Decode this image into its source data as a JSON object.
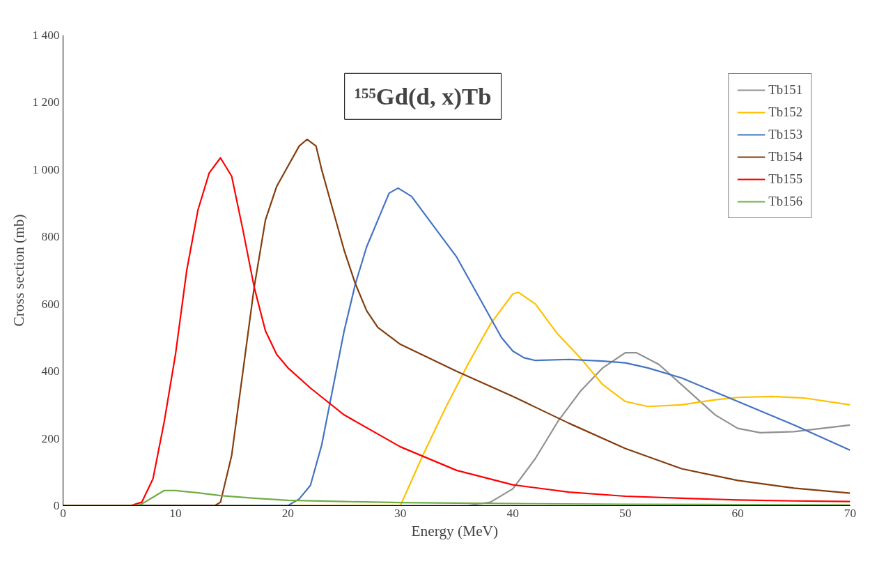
{
  "chart_data": {
    "type": "line",
    "title": "¹⁵⁵Gd(d, x)Tb",
    "xlabel": "Energy  (MeV)",
    "ylabel": "Cross section (mb)",
    "xlim": [
      0,
      70
    ],
    "xticks": [
      0,
      10,
      20,
      30,
      40,
      50,
      60,
      70
    ],
    "ylim": [
      0,
      1400
    ],
    "yticks": [
      0,
      200,
      400,
      600,
      800,
      {
        "value": 1000,
        "label": "1 000"
      },
      {
        "value": 1200,
        "label": "1 200"
      },
      {
        "value": 1400,
        "label": "1 400"
      }
    ],
    "grid": false,
    "legend": "top right",
    "marker": "none",
    "line_style": "solid",
    "series": [
      {
        "name": "Tb151",
        "color": "#909090",
        "x": [
          0,
          36,
          38,
          40,
          42,
          44,
          46,
          48,
          50,
          51,
          53,
          55,
          58,
          60,
          62,
          65,
          70
        ],
        "values": [
          0,
          0,
          10,
          50,
          140,
          250,
          340,
          410,
          455,
          455,
          420,
          360,
          270,
          230,
          217,
          220,
          240
        ]
      },
      {
        "name": "Tb152",
        "color": "#ffc000",
        "x": [
          0,
          30,
          32,
          34,
          36,
          38,
          40,
          40.5,
          42,
          44,
          46,
          48,
          50,
          52,
          55,
          58,
          60,
          63,
          66,
          70
        ],
        "values": [
          0,
          0,
          150,
          290,
          420,
          540,
          630,
          635,
          600,
          510,
          440,
          360,
          310,
          295,
          300,
          315,
          322,
          325,
          320,
          300
        ]
      },
      {
        "name": "Tb153",
        "color": "#4472c4",
        "x": [
          0,
          20,
          21,
          22,
          23,
          24,
          25,
          26,
          27,
          28,
          29,
          29.8,
          31,
          33,
          35,
          37,
          39,
          40,
          41,
          42,
          45,
          48,
          50,
          52,
          55,
          60,
          65,
          70
        ],
        "values": [
          0,
          0,
          20,
          60,
          180,
          350,
          520,
          660,
          770,
          850,
          930,
          945,
          920,
          830,
          740,
          620,
          500,
          460,
          440,
          432,
          435,
          430,
          425,
          410,
          380,
          310,
          240,
          165
        ]
      },
      {
        "name": "Tb154",
        "color": "#843c0c",
        "x": [
          0,
          13.5,
          14,
          15,
          16,
          17,
          18,
          19,
          20,
          21,
          21.7,
          22.5,
          23,
          24,
          25,
          26,
          27,
          28,
          30,
          35,
          40,
          45,
          50,
          55,
          60,
          65,
          70
        ],
        "values": [
          0,
          0,
          10,
          150,
          400,
          650,
          850,
          950,
          1010,
          1070,
          1090,
          1070,
          1000,
          880,
          760,
          660,
          580,
          530,
          480,
          400,
          325,
          245,
          170,
          110,
          75,
          52,
          37
        ]
      },
      {
        "name": "Tb155",
        "color": "#ff0000",
        "x": [
          0,
          6,
          7,
          8,
          9,
          10,
          11,
          12,
          13,
          14,
          15,
          16,
          17,
          18,
          19,
          20,
          22,
          25,
          30,
          35,
          40,
          45,
          50,
          55,
          60,
          65,
          70
        ],
        "values": [
          0,
          0,
          10,
          80,
          250,
          450,
          700,
          880,
          990,
          1035,
          980,
          820,
          650,
          520,
          450,
          410,
          350,
          270,
          175,
          105,
          62,
          40,
          28,
          22,
          17,
          14,
          12
        ]
      },
      {
        "name": "Tb156",
        "color": "#70ad47",
        "x": [
          0,
          6.5,
          7,
          8,
          9,
          10,
          12,
          14,
          17,
          20,
          25,
          30,
          40,
          50,
          60,
          70
        ],
        "values": [
          0,
          0,
          5,
          25,
          45,
          45,
          38,
          30,
          22,
          16,
          12,
          9,
          6,
          4,
          3,
          2
        ]
      }
    ]
  }
}
